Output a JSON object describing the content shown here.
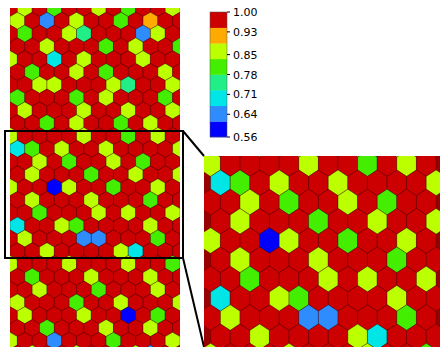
{
  "chart_data": {
    "type": "heatmap",
    "cells": [
      [
        0.98,
        0.88,
        0.97,
        0.82,
        0.99,
        0.97,
        0.86,
        0.98,
        0.8,
        0.97,
        0.99,
        0.88
      ],
      [
        0.84,
        0.97,
        0.66,
        0.98,
        0.86,
        0.99,
        0.97,
        0.82,
        0.98,
        0.9,
        0.97,
        0.98
      ],
      [
        0.97,
        0.8,
        0.98,
        0.97,
        0.88,
        0.76,
        0.98,
        0.97,
        0.99,
        0.62,
        0.84,
        0.97
      ],
      [
        0.99,
        0.97,
        0.84,
        0.98,
        0.97,
        0.99,
        0.82,
        0.98,
        0.86,
        0.97,
        0.98,
        0.8
      ],
      [
        0.86,
        0.98,
        0.97,
        0.72,
        0.99,
        0.88,
        0.97,
        0.98,
        0.97,
        0.84,
        0.99,
        0.97
      ],
      [
        0.97,
        0.82,
        0.99,
        0.97,
        0.86,
        0.98,
        0.8,
        0.97,
        0.98,
        0.99,
        0.88,
        0.97
      ],
      [
        0.98,
        0.97,
        0.88,
        0.84,
        0.97,
        0.99,
        0.97,
        0.86,
        0.76,
        0.97,
        0.98,
        0.84
      ],
      [
        0.8,
        0.99,
        0.97,
        0.98,
        0.82,
        0.97,
        0.88,
        0.98,
        0.97,
        0.99,
        0.82,
        0.97
      ],
      [
        0.97,
        0.86,
        0.98,
        0.99,
        0.97,
        0.84,
        0.98,
        0.97,
        0.88,
        0.97,
        0.99,
        0.86
      ],
      [
        0.99,
        0.97,
        0.82,
        0.97,
        0.88,
        0.98,
        0.99,
        0.8,
        0.97,
        0.84,
        0.97,
        0.98
      ],
      [
        0.84,
        0.98,
        0.97,
        0.99,
        0.97,
        0.86,
        0.97,
        0.98,
        0.82,
        0.97,
        0.88,
        0.99
      ],
      [
        0.72,
        0.82,
        0.98,
        0.86,
        0.99,
        0.97,
        0.84,
        0.97,
        0.98,
        0.99,
        0.97,
        0.84
      ],
      [
        0.97,
        0.99,
        0.86,
        0.97,
        0.8,
        0.98,
        0.97,
        0.88,
        0.97,
        0.82,
        0.98,
        0.97
      ],
      [
        0.98,
        0.84,
        0.97,
        0.99,
        0.97,
        0.82,
        0.98,
        0.97,
        0.86,
        0.99,
        0.97,
        0.88
      ],
      [
        0.86,
        0.97,
        0.99,
        0.58,
        0.84,
        0.97,
        0.99,
        0.82,
        0.97,
        0.98,
        0.84,
        0.97
      ],
      [
        0.97,
        0.88,
        0.98,
        0.97,
        0.99,
        0.86,
        0.97,
        0.98,
        0.99,
        0.8,
        0.97,
        0.98
      ],
      [
        0.99,
        0.97,
        0.82,
        0.98,
        0.97,
        0.99,
        0.88,
        0.97,
        0.84,
        0.97,
        0.99,
        0.86
      ],
      [
        0.7,
        0.98,
        0.97,
        0.86,
        0.8,
        0.97,
        0.98,
        0.99,
        0.97,
        0.88,
        0.97,
        0.98
      ],
      [
        0.97,
        0.84,
        0.99,
        0.97,
        0.98,
        0.66,
        0.62,
        0.97,
        0.98,
        0.99,
        0.82,
        0.97
      ],
      [
        0.98,
        0.97,
        0.88,
        0.99,
        0.97,
        0.98,
        0.97,
        0.84,
        0.68,
        0.97,
        0.98,
        0.99
      ],
      [
        0.86,
        0.99,
        0.97,
        0.98,
        0.84,
        0.97,
        0.99,
        0.97,
        0.88,
        0.98,
        0.97,
        0.82
      ],
      [
        0.97,
        0.82,
        0.98,
        0.97,
        0.99,
        0.88,
        0.97,
        0.98,
        0.97,
        0.84,
        0.99,
        0.97
      ],
      [
        0.99,
        0.97,
        0.86,
        0.98,
        0.97,
        0.99,
        0.82,
        0.97,
        0.98,
        0.97,
        0.88,
        0.98
      ],
      [
        0.84,
        0.98,
        0.97,
        0.99,
        0.8,
        0.97,
        0.98,
        0.86,
        0.97,
        0.99,
        0.97,
        0.84
      ],
      [
        0.97,
        0.88,
        0.99,
        0.97,
        0.98,
        0.84,
        0.97,
        0.99,
        0.6,
        0.97,
        0.82,
        0.97
      ],
      [
        0.98,
        0.97,
        0.82,
        0.98,
        0.97,
        0.99,
        0.88,
        0.97,
        0.98,
        0.86,
        0.97,
        0.99
      ],
      [
        0.86,
        0.99,
        0.97,
        0.64,
        0.98,
        0.97,
        0.99,
        0.82,
        0.97,
        0.98,
        0.97,
        0.88
      ],
      [
        0.97,
        0.84,
        0.98,
        0.97,
        0.86,
        0.98,
        0.97,
        0.99,
        0.84,
        0.62,
        0.97,
        0.98
      ]
    ],
    "colorbar": {
      "range": [
        0.56,
        1
      ],
      "ticks": [
        {
          "value": 1,
          "label": "1.00"
        },
        0.93,
        0.85,
        0.78,
        0.71,
        0.64,
        0.56
      ]
    }
  }
}
